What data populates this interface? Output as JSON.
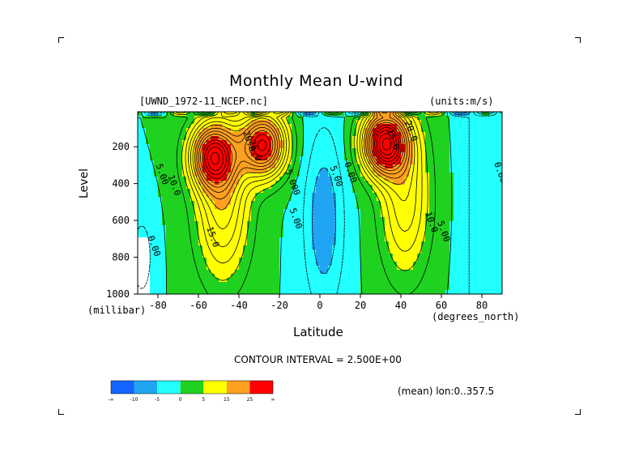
{
  "chart_data": {
    "type": "heatmap",
    "title": "Monthly Mean U-wind",
    "dataset_label": "[UWND_1972-11_NCEP.nc]",
    "units_label": "(units:m/s)",
    "xlabel": "Latitude",
    "x_units": "(degrees_north)",
    "ylabel": "Level",
    "y_units": "(millibar)",
    "xlim": [
      -90,
      90
    ],
    "ylim": [
      1000,
      10
    ],
    "x_ticks": [
      -80,
      -60,
      -40,
      -20,
      0,
      20,
      40,
      60,
      80
    ],
    "y_ticks": [
      200,
      400,
      600,
      800,
      1000
    ],
    "grid": false,
    "contour_interval_text": "CONTOUR INTERVAL = 2.500E+00",
    "contour_interval": 2.5,
    "average_note": "(mean) lon:0..357.5",
    "colorbar": {
      "labels": [
        "-∞",
        "-10",
        "-5",
        "0",
        "5",
        "15",
        "25",
        "∞"
      ],
      "colors": [
        "#1464ff",
        "#1fa5f2",
        "#22ffff",
        "#1fd21f",
        "#ffff00",
        "#ffa020",
        "#ff0000"
      ]
    },
    "jets": [
      {
        "lat": -53,
        "level": 250,
        "peak": 27
      },
      {
        "lat": -28,
        "level": 190,
        "peak": 30
      },
      {
        "lat": 32,
        "level": 180,
        "peak": 35
      }
    ],
    "contour_labels": [
      {
        "text": "5.00",
        "lat": -81,
        "level": 300
      },
      {
        "text": "10.0",
        "lat": -75,
        "level": 360
      },
      {
        "text": "15.0",
        "lat": -56,
        "level": 640
      },
      {
        "text": "20.0",
        "lat": -38,
        "level": 120
      },
      {
        "text": "25.0",
        "lat": -35,
        "level": 170
      },
      {
        "text": "5.000",
        "lat": -17,
        "level": 330
      },
      {
        "text": "5.00",
        "lat": -15,
        "level": 540
      },
      {
        "text": "5.00",
        "lat": 5,
        "level": 310
      },
      {
        "text": "0.00",
        "lat": 12,
        "level": 290
      },
      {
        "text": "0.00",
        "lat": -85,
        "level": 690
      },
      {
        "text": "15.0",
        "lat": 33,
        "level": 110
      },
      {
        "text": "20.0",
        "lat": 42,
        "level": 65
      },
      {
        "text": "10.0",
        "lat": 52,
        "level": 560
      },
      {
        "text": "5.00",
        "lat": 58,
        "level": 610
      },
      {
        "text": "0.00",
        "lat": 86,
        "level": 290
      }
    ]
  }
}
